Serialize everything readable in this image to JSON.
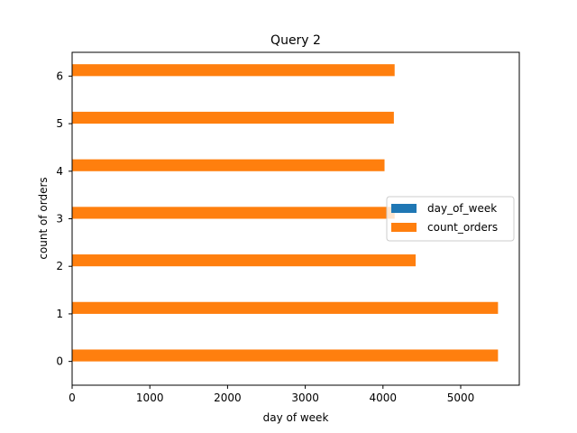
{
  "chart_data": {
    "type": "bar",
    "orientation": "horizontal",
    "title": "Query 2",
    "xlabel": "day of week",
    "ylabel": "count of orders",
    "categories": [
      "0",
      "1",
      "2",
      "3",
      "4",
      "5",
      "6"
    ],
    "series": [
      {
        "name": "day_of_week",
        "values": [
          0,
          1,
          2,
          3,
          4,
          5,
          6
        ],
        "color": "#1f77b4"
      },
      {
        "name": "count_orders",
        "values": [
          5480,
          5480,
          4420,
          4150,
          4020,
          4140,
          4150
        ],
        "color": "#ff7f0e"
      }
    ],
    "xlim": [
      0,
      5754
    ],
    "xticks": [
      0,
      1000,
      2000,
      3000,
      4000,
      5000
    ],
    "legend_position": "center-right",
    "grid": false
  }
}
